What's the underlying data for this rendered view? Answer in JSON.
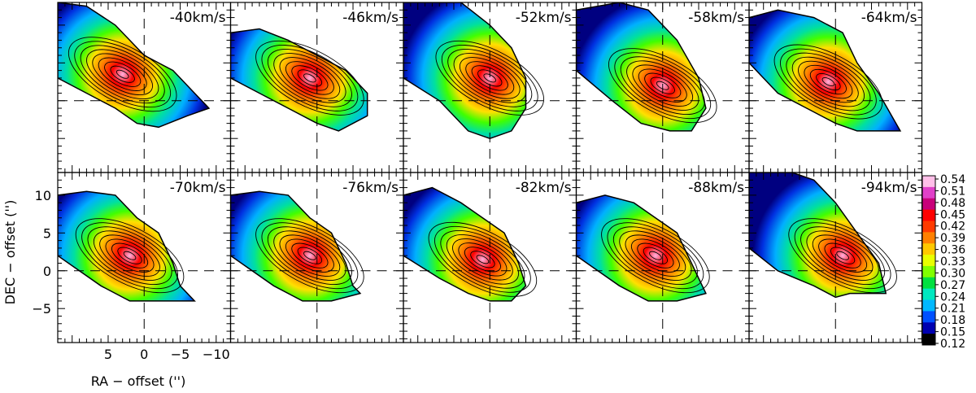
{
  "chart_data": {
    "type": "heatmap",
    "description_free": true,
    "panels": [
      {
        "label": "-40km/s",
        "row": 0,
        "col": 0
      },
      {
        "label": "-46km/s",
        "row": 0,
        "col": 1
      },
      {
        "label": "-52km/s",
        "row": 0,
        "col": 2
      },
      {
        "label": "-58km/s",
        "row": 0,
        "col": 3
      },
      {
        "label": "-64km/s",
        "row": 0,
        "col": 4
      },
      {
        "label": "-70km/s",
        "row": 1,
        "col": 0
      },
      {
        "label": "-76km/s",
        "row": 1,
        "col": 1
      },
      {
        "label": "-82km/s",
        "row": 1,
        "col": 2
      },
      {
        "label": "-88km/s",
        "row": 1,
        "col": 3
      },
      {
        "label": "-94km/s",
        "row": 1,
        "col": 4
      }
    ],
    "xlabel": "RA − offset ('')",
    "ylabel": "DEC − offset ('')",
    "xlim": [
      12,
      -12
    ],
    "ylim": [
      -9.5,
      13
    ],
    "xticks": [
      {
        "value": 5,
        "label": "5"
      },
      {
        "value": 0,
        "label": "0"
      },
      {
        "value": -5,
        "label": "−5"
      },
      {
        "value": -10,
        "label": "−10"
      }
    ],
    "yticks": [
      {
        "value": 10,
        "label": "10"
      },
      {
        "value": 5,
        "label": "5"
      },
      {
        "value": 0,
        "label": "0"
      },
      {
        "value": -5,
        "label": "−5"
      }
    ],
    "colorbar": {
      "labels": [
        "0.54",
        "0.51",
        "0.48",
        "0.45",
        "0.42",
        "0.39",
        "0.36",
        "0.33",
        "0.30",
        "0.27",
        "0.24",
        "0.21",
        "0.18",
        "0.15",
        "0.12"
      ],
      "colors": [
        "#ffbfe8",
        "#e040c8",
        "#c8007a",
        "#ff0000",
        "#ff3a00",
        "#ff8000",
        "#ffc800",
        "#e8ff00",
        "#80ff00",
        "#00e040",
        "#00e8c0",
        "#00b8ff",
        "#0050ff",
        "#0000b0",
        "#000000"
      ]
    },
    "reference_lines": {
      "x": 0,
      "y": 0,
      "style": "dashed"
    }
  }
}
